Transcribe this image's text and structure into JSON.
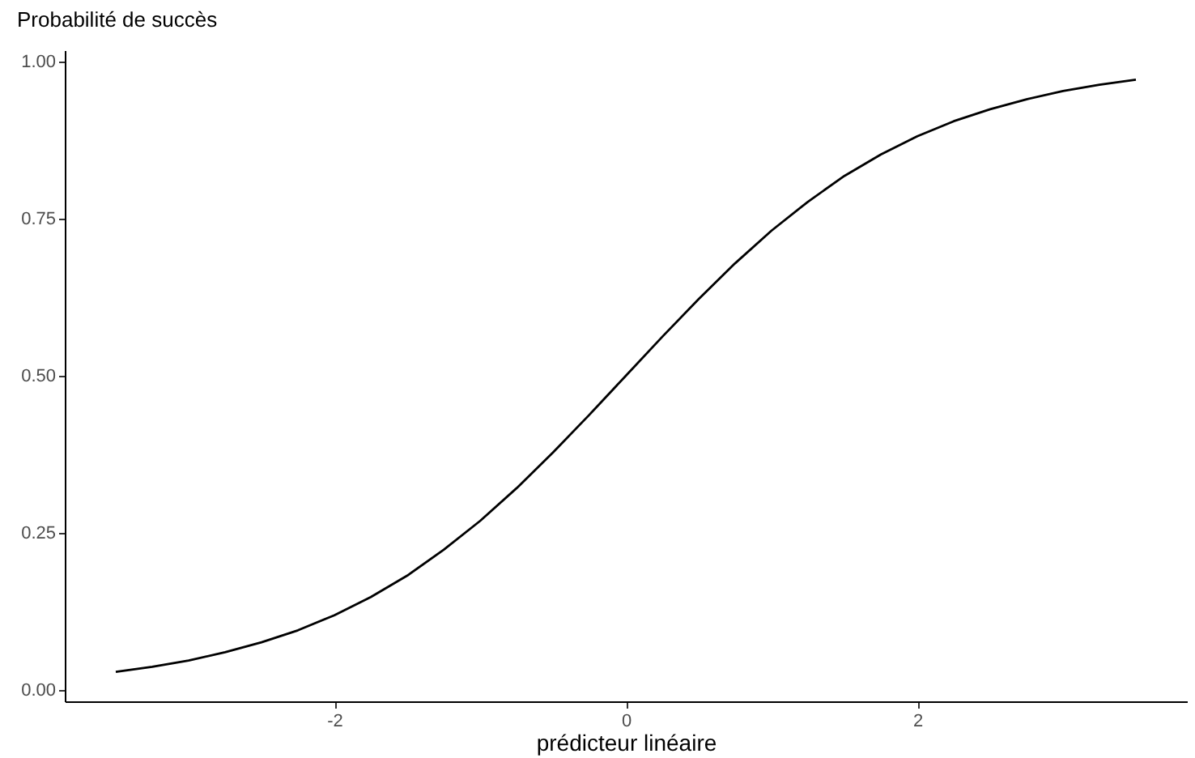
{
  "chart_data": {
    "type": "line",
    "xlabel": "prédicteur linéaire",
    "ylabel": "Probabilité de succès",
    "x": [
      -3.5,
      -3.25,
      -3,
      -2.75,
      -2.5,
      -2.25,
      -2,
      -1.75,
      -1.5,
      -1.25,
      -1,
      -0.75,
      -0.5,
      -0.25,
      0,
      0.25,
      0.5,
      0.75,
      1,
      1.25,
      1.5,
      1.75,
      2,
      2.25,
      2.5,
      2.75,
      3,
      3.25,
      3.5
    ],
    "series": [
      {
        "color": "#000000",
        "values": [
          0.029,
          0.037,
          0.047,
          0.06,
          0.076,
          0.095,
          0.119,
          0.148,
          0.182,
          0.223,
          0.269,
          0.321,
          0.378,
          0.438,
          0.5,
          0.562,
          0.622,
          0.679,
          0.731,
          0.777,
          0.818,
          0.852,
          0.881,
          0.905,
          0.924,
          0.94,
          0.953,
          0.963,
          0.971
        ]
      }
    ],
    "xlim": [
      -3.85,
      3.85
    ],
    "xticks": [
      -2,
      0,
      2
    ],
    "ylim": [
      -0.018,
      1.018
    ],
    "yticks": [
      {
        "value": 0,
        "label": "0.00"
      },
      {
        "value": 0.25,
        "label": "0.25"
      },
      {
        "value": 0.5,
        "label": "0.50"
      },
      {
        "value": 0.75,
        "label": "0.75"
      },
      {
        "value": 1,
        "label": "1.00"
      }
    ],
    "grid": false,
    "legend": false,
    "marker": "none",
    "line_style": "solid"
  }
}
